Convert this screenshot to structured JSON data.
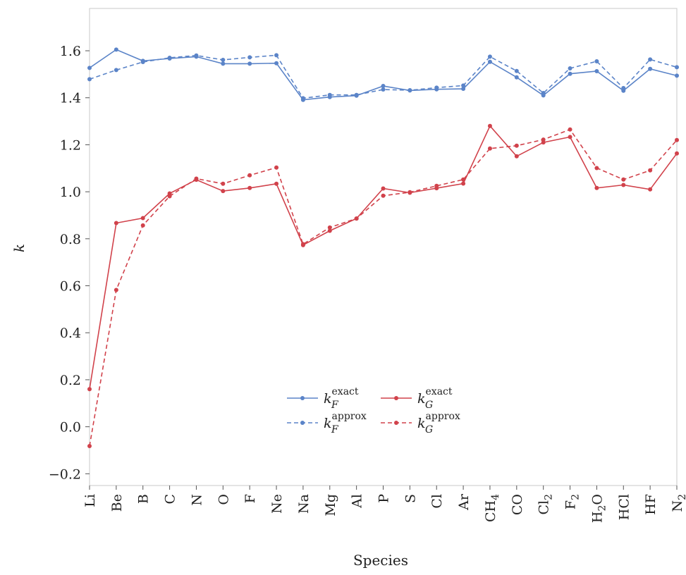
{
  "chart_data": {
    "type": "line",
    "xlabel": "Species",
    "ylabel": "k",
    "ylim": [
      -0.25,
      1.78
    ],
    "yticks": [
      -0.2,
      0.0,
      0.2,
      0.4,
      0.6,
      0.8,
      1.0,
      1.2,
      1.4,
      1.6
    ],
    "ytick_labels": [
      "−0.2",
      "0.0",
      "0.2",
      "0.4",
      "0.6",
      "0.8",
      "1.0",
      "1.2",
      "1.4",
      "1.6"
    ],
    "grid": false,
    "legend_position": "lower-center",
    "categories": [
      {
        "base": "Li",
        "sub": ""
      },
      {
        "base": "Be",
        "sub": ""
      },
      {
        "base": "B",
        "sub": ""
      },
      {
        "base": "C",
        "sub": ""
      },
      {
        "base": "N",
        "sub": ""
      },
      {
        "base": "O",
        "sub": ""
      },
      {
        "base": "F",
        "sub": ""
      },
      {
        "base": "Ne",
        "sub": ""
      },
      {
        "base": "Na",
        "sub": ""
      },
      {
        "base": "Mg",
        "sub": ""
      },
      {
        "base": "Al",
        "sub": ""
      },
      {
        "base": "P",
        "sub": ""
      },
      {
        "base": "S",
        "sub": ""
      },
      {
        "base": "Cl",
        "sub": ""
      },
      {
        "base": "Ar",
        "sub": ""
      },
      {
        "base": "CH",
        "sub": "4"
      },
      {
        "base": "CO",
        "sub": ""
      },
      {
        "base": "Cl",
        "sub": "2"
      },
      {
        "base": "F",
        "sub": "2"
      },
      {
        "base": "H",
        "sub": "2",
        "tail": "O"
      },
      {
        "base": "HCl",
        "sub": ""
      },
      {
        "base": "HF",
        "sub": ""
      },
      {
        "base": "N",
        "sub": "2"
      }
    ],
    "series": [
      {
        "name": "k_F^exact",
        "base": "k",
        "subscript": "F",
        "superscript": "exact",
        "color": "#5b84c8",
        "dash": "solid",
        "values": [
          1.527,
          1.605,
          1.557,
          1.567,
          1.575,
          1.545,
          1.545,
          1.547,
          1.391,
          1.403,
          1.409,
          1.45,
          1.431,
          1.436,
          1.438,
          1.553,
          1.487,
          1.41,
          1.502,
          1.513,
          1.43,
          1.523,
          1.494
        ]
      },
      {
        "name": "k_F^approx",
        "base": "k",
        "subscript": "F",
        "superscript": "approx",
        "color": "#5b84c8",
        "dash": "dashed",
        "values": [
          1.479,
          1.518,
          1.552,
          1.57,
          1.58,
          1.561,
          1.572,
          1.581,
          1.398,
          1.412,
          1.412,
          1.435,
          1.432,
          1.443,
          1.452,
          1.575,
          1.514,
          1.42,
          1.525,
          1.555,
          1.441,
          1.563,
          1.53
        ]
      },
      {
        "name": "k_G^exact",
        "base": "k",
        "subscript": "G",
        "superscript": "exact",
        "color": "#d1424b",
        "dash": "solid",
        "values": [
          0.16,
          0.867,
          0.888,
          0.993,
          1.051,
          1.003,
          1.016,
          1.034,
          0.773,
          0.834,
          0.886,
          1.014,
          0.996,
          1.015,
          1.035,
          1.28,
          1.151,
          1.21,
          1.233,
          1.016,
          1.029,
          1.01,
          1.163
        ]
      },
      {
        "name": "k_G^approx",
        "base": "k",
        "subscript": "G",
        "superscript": "approx",
        "color": "#d1424b",
        "dash": "dashed",
        "values": [
          -0.082,
          0.582,
          0.857,
          0.981,
          1.056,
          1.034,
          1.07,
          1.103,
          0.777,
          0.848,
          0.886,
          0.983,
          0.998,
          1.025,
          1.052,
          1.184,
          1.196,
          1.222,
          1.265,
          1.101,
          1.052,
          1.091,
          1.22
        ]
      }
    ]
  }
}
